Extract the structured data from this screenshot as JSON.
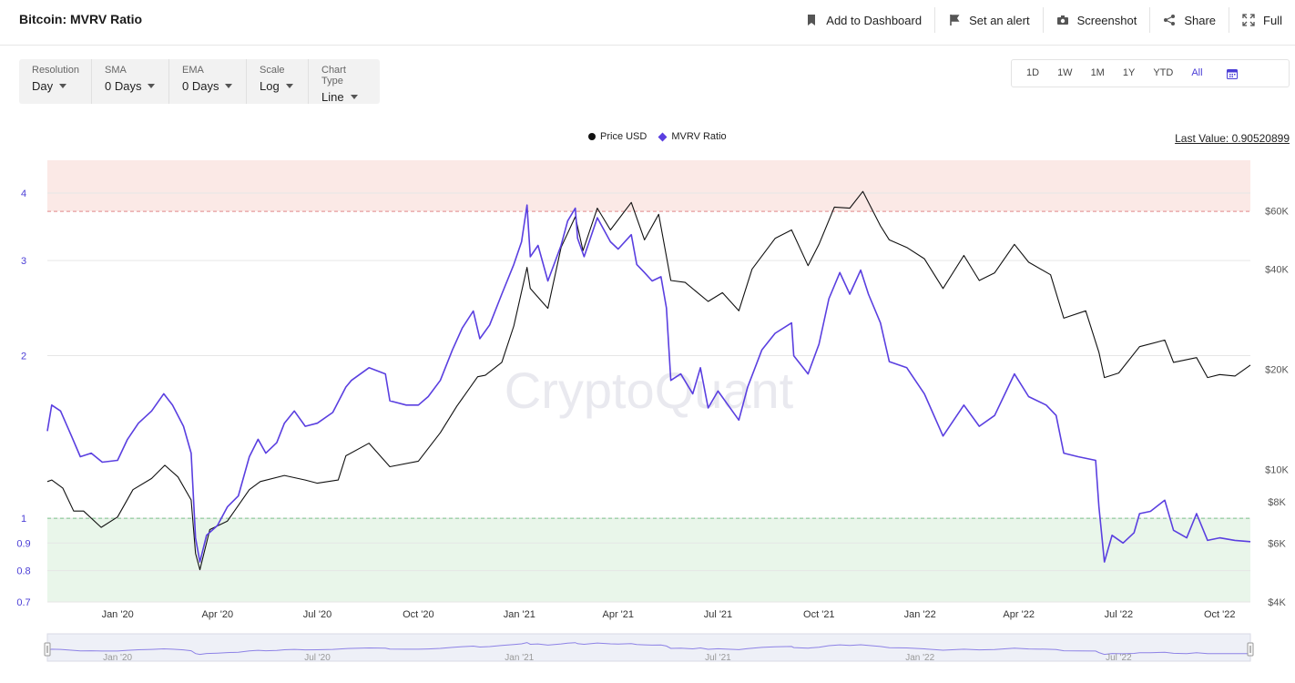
{
  "title": "Bitcoin: MVRV Ratio",
  "actions": [
    {
      "label": "Add to Dashboard",
      "icon": "bookmark-icon"
    },
    {
      "label": "Set an alert",
      "icon": "alert-flag-icon"
    },
    {
      "label": "Screenshot",
      "icon": "camera-icon"
    },
    {
      "label": "Share",
      "icon": "share-icon"
    },
    {
      "label": "Full",
      "icon": "expand-icon"
    }
  ],
  "controls": [
    {
      "label": "Resolution",
      "value": "Day"
    },
    {
      "label": "SMA",
      "value": "0 Days"
    },
    {
      "label": "EMA",
      "value": "0 Days"
    },
    {
      "label": "Scale",
      "value": "Log"
    },
    {
      "label": "Chart Type",
      "value": "Line"
    }
  ],
  "ranges": [
    "1D",
    "1W",
    "1M",
    "1Y",
    "YTD",
    "All"
  ],
  "active_range": "All",
  "legend": [
    {
      "name": "Price USD",
      "color": "#111111"
    },
    {
      "name": "MVRV Ratio",
      "color": "#5a3fe0"
    }
  ],
  "last_value": "Last Value: 0.90520899",
  "watermark": "CryptoQuant",
  "colors": {
    "mvrv": "#5a3fe0",
    "price": "#111111",
    "overvalued_zone": "#fbe9e6",
    "undervalued_zone": "#e9f6ea",
    "upper_threshold": "#e0868a",
    "lower_threshold": "#7cc28a"
  },
  "chart_data": {
    "type": "line",
    "scale": "log",
    "x_range": [
      "2019-10-29",
      "2022-10-29"
    ],
    "x_ticks": [
      {
        "label": "Jan '20",
        "date": "2020-01-01"
      },
      {
        "label": "Apr '20",
        "date": "2020-04-01"
      },
      {
        "label": "Jul '20",
        "date": "2020-07-01"
      },
      {
        "label": "Oct '20",
        "date": "2020-10-01"
      },
      {
        "label": "Jan '21",
        "date": "2021-01-01"
      },
      {
        "label": "Apr '21",
        "date": "2021-04-01"
      },
      {
        "label": "Jul '21",
        "date": "2021-07-01"
      },
      {
        "label": "Oct '21",
        "date": "2021-10-01"
      },
      {
        "label": "Jan '22",
        "date": "2022-01-01"
      },
      {
        "label": "Apr '22",
        "date": "2022-04-01"
      },
      {
        "label": "Jul '22",
        "date": "2022-07-01"
      },
      {
        "label": "Oct '22",
        "date": "2022-10-01"
      }
    ],
    "y_left": {
      "ticks": [
        0.7,
        0.8,
        0.9,
        1,
        2,
        3,
        4
      ],
      "range": [
        0.7,
        4.6
      ]
    },
    "y_right": {
      "ticks": [
        {
          "label": "$4K",
          "value": 4000
        },
        {
          "label": "$6K",
          "value": 6000
        },
        {
          "label": "$8K",
          "value": 8000
        },
        {
          "label": "$10K",
          "value": 10000
        },
        {
          "label": "$20K",
          "value": 20000
        },
        {
          "label": "$40K",
          "value": 40000
        },
        {
          "label": "$60K",
          "value": 60000
        }
      ],
      "range": [
        4000,
        85000
      ]
    },
    "zones": {
      "upper": 3.7,
      "lower": 1.0
    },
    "series": [
      {
        "name": "MVRV Ratio",
        "axis": "left",
        "points": [
          [
            "2019-10-29",
            1.45
          ],
          [
            "2019-11-02",
            1.62
          ],
          [
            "2019-11-10",
            1.58
          ],
          [
            "2019-11-20",
            1.42
          ],
          [
            "2019-11-28",
            1.3
          ],
          [
            "2019-12-08",
            1.32
          ],
          [
            "2019-12-18",
            1.27
          ],
          [
            "2020-01-01",
            1.28
          ],
          [
            "2020-01-10",
            1.4
          ],
          [
            "2020-01-20",
            1.5
          ],
          [
            "2020-02-01",
            1.58
          ],
          [
            "2020-02-12",
            1.7
          ],
          [
            "2020-02-20",
            1.62
          ],
          [
            "2020-03-01",
            1.48
          ],
          [
            "2020-03-08",
            1.32
          ],
          [
            "2020-03-12",
            0.92
          ],
          [
            "2020-03-16",
            0.83
          ],
          [
            "2020-03-22",
            0.93
          ],
          [
            "2020-04-01",
            0.97
          ],
          [
            "2020-04-10",
            1.05
          ],
          [
            "2020-04-20",
            1.1
          ],
          [
            "2020-04-30",
            1.3
          ],
          [
            "2020-05-08",
            1.4
          ],
          [
            "2020-05-15",
            1.32
          ],
          [
            "2020-05-25",
            1.38
          ],
          [
            "2020-06-01",
            1.5
          ],
          [
            "2020-06-10",
            1.58
          ],
          [
            "2020-06-20",
            1.48
          ],
          [
            "2020-07-01",
            1.5
          ],
          [
            "2020-07-15",
            1.57
          ],
          [
            "2020-07-27",
            1.75
          ],
          [
            "2020-08-01",
            1.8
          ],
          [
            "2020-08-17",
            1.9
          ],
          [
            "2020-09-01",
            1.85
          ],
          [
            "2020-09-05",
            1.65
          ],
          [
            "2020-09-20",
            1.62
          ],
          [
            "2020-10-01",
            1.62
          ],
          [
            "2020-10-10",
            1.68
          ],
          [
            "2020-10-21",
            1.8
          ],
          [
            "2020-11-01",
            2.05
          ],
          [
            "2020-11-10",
            2.25
          ],
          [
            "2020-11-20",
            2.42
          ],
          [
            "2020-11-26",
            2.15
          ],
          [
            "2020-12-05",
            2.28
          ],
          [
            "2020-12-16",
            2.6
          ],
          [
            "2020-12-27",
            2.95
          ],
          [
            "2021-01-03",
            3.25
          ],
          [
            "2021-01-08",
            3.8
          ],
          [
            "2021-01-11",
            3.05
          ],
          [
            "2021-01-18",
            3.2
          ],
          [
            "2021-01-27",
            2.75
          ],
          [
            "2021-02-08",
            3.2
          ],
          [
            "2021-02-14",
            3.55
          ],
          [
            "2021-02-21",
            3.75
          ],
          [
            "2021-02-23",
            3.3
          ],
          [
            "2021-03-01",
            3.05
          ],
          [
            "2021-03-13",
            3.6
          ],
          [
            "2021-03-25",
            3.25
          ],
          [
            "2021-04-01",
            3.15
          ],
          [
            "2021-04-13",
            3.35
          ],
          [
            "2021-04-18",
            2.95
          ],
          [
            "2021-04-25",
            2.85
          ],
          [
            "2021-05-02",
            2.75
          ],
          [
            "2021-05-10",
            2.8
          ],
          [
            "2021-05-15",
            2.45
          ],
          [
            "2021-05-19",
            1.8
          ],
          [
            "2021-05-28",
            1.85
          ],
          [
            "2021-06-08",
            1.7
          ],
          [
            "2021-06-15",
            1.9
          ],
          [
            "2021-06-22",
            1.6
          ],
          [
            "2021-07-01",
            1.72
          ],
          [
            "2021-07-20",
            1.52
          ],
          [
            "2021-07-28",
            1.75
          ],
          [
            "2021-08-10",
            2.05
          ],
          [
            "2021-08-22",
            2.2
          ],
          [
            "2021-09-06",
            2.3
          ],
          [
            "2021-09-08",
            2.0
          ],
          [
            "2021-09-21",
            1.85
          ],
          [
            "2021-10-01",
            2.1
          ],
          [
            "2021-10-10",
            2.55
          ],
          [
            "2021-10-20",
            2.85
          ],
          [
            "2021-10-29",
            2.6
          ],
          [
            "2021-11-08",
            2.88
          ],
          [
            "2021-11-15",
            2.6
          ],
          [
            "2021-11-26",
            2.3
          ],
          [
            "2021-12-04",
            1.95
          ],
          [
            "2021-12-20",
            1.9
          ],
          [
            "2022-01-05",
            1.7
          ],
          [
            "2022-01-22",
            1.42
          ],
          [
            "2022-02-10",
            1.62
          ],
          [
            "2022-02-24",
            1.48
          ],
          [
            "2022-03-10",
            1.55
          ],
          [
            "2022-03-28",
            1.85
          ],
          [
            "2022-04-10",
            1.68
          ],
          [
            "2022-04-26",
            1.62
          ],
          [
            "2022-05-05",
            1.55
          ],
          [
            "2022-05-12",
            1.32
          ],
          [
            "2022-05-25",
            1.3
          ],
          [
            "2022-06-10",
            1.28
          ],
          [
            "2022-06-13",
            1.05
          ],
          [
            "2022-06-18",
            0.83
          ],
          [
            "2022-06-25",
            0.93
          ],
          [
            "2022-07-05",
            0.9
          ],
          [
            "2022-07-15",
            0.94
          ],
          [
            "2022-07-20",
            1.02
          ],
          [
            "2022-07-30",
            1.03
          ],
          [
            "2022-08-12",
            1.08
          ],
          [
            "2022-08-20",
            0.95
          ],
          [
            "2022-09-01",
            0.92
          ],
          [
            "2022-09-10",
            1.02
          ],
          [
            "2022-09-20",
            0.91
          ],
          [
            "2022-10-01",
            0.92
          ],
          [
            "2022-10-15",
            0.91
          ],
          [
            "2022-10-29",
            0.905
          ]
        ]
      },
      {
        "name": "Price USD",
        "axis": "right",
        "points": [
          [
            "2019-10-29",
            9200
          ],
          [
            "2019-11-02",
            9300
          ],
          [
            "2019-11-12",
            8800
          ],
          [
            "2019-11-22",
            7500
          ],
          [
            "2019-12-01",
            7500
          ],
          [
            "2019-12-17",
            6700
          ],
          [
            "2020-01-01",
            7200
          ],
          [
            "2020-01-15",
            8700
          ],
          [
            "2020-02-01",
            9400
          ],
          [
            "2020-02-13",
            10300
          ],
          [
            "2020-02-25",
            9500
          ],
          [
            "2020-03-08",
            8100
          ],
          [
            "2020-03-12",
            5600
          ],
          [
            "2020-03-16",
            5000
          ],
          [
            "2020-03-25",
            6600
          ],
          [
            "2020-04-10",
            7000
          ],
          [
            "2020-04-30",
            8700
          ],
          [
            "2020-05-10",
            9200
          ],
          [
            "2020-06-01",
            9600
          ],
          [
            "2020-06-20",
            9300
          ],
          [
            "2020-07-01",
            9100
          ],
          [
            "2020-07-20",
            9300
          ],
          [
            "2020-07-27",
            11000
          ],
          [
            "2020-08-17",
            12000
          ],
          [
            "2020-09-05",
            10200
          ],
          [
            "2020-10-01",
            10600
          ],
          [
            "2020-10-21",
            12900
          ],
          [
            "2020-11-05",
            15500
          ],
          [
            "2020-11-24",
            19000
          ],
          [
            "2020-12-01",
            19200
          ],
          [
            "2020-12-16",
            21000
          ],
          [
            "2020-12-27",
            27000
          ],
          [
            "2021-01-08",
            40500
          ],
          [
            "2021-01-11",
            35000
          ],
          [
            "2021-01-27",
            30500
          ],
          [
            "2021-02-08",
            46500
          ],
          [
            "2021-02-21",
            57500
          ],
          [
            "2021-02-28",
            45500
          ],
          [
            "2021-03-13",
            61000
          ],
          [
            "2021-03-25",
            52500
          ],
          [
            "2021-04-13",
            63500
          ],
          [
            "2021-04-25",
            49000
          ],
          [
            "2021-05-08",
            58500
          ],
          [
            "2021-05-19",
            37000
          ],
          [
            "2021-06-01",
            36500
          ],
          [
            "2021-06-22",
            32000
          ],
          [
            "2021-07-05",
            34000
          ],
          [
            "2021-07-20",
            30000
          ],
          [
            "2021-08-01",
            40000
          ],
          [
            "2021-08-22",
            49500
          ],
          [
            "2021-09-06",
            52500
          ],
          [
            "2021-09-21",
            41000
          ],
          [
            "2021-10-01",
            47500
          ],
          [
            "2021-10-15",
            61500
          ],
          [
            "2021-10-29",
            61000
          ],
          [
            "2021-11-10",
            68500
          ],
          [
            "2021-11-26",
            54000
          ],
          [
            "2021-12-04",
            49000
          ],
          [
            "2021-12-20",
            46500
          ],
          [
            "2022-01-05",
            43000
          ],
          [
            "2022-01-22",
            35000
          ],
          [
            "2022-02-10",
            44000
          ],
          [
            "2022-02-24",
            37000
          ],
          [
            "2022-03-10",
            39000
          ],
          [
            "2022-03-28",
            47500
          ],
          [
            "2022-04-10",
            42000
          ],
          [
            "2022-04-30",
            38500
          ],
          [
            "2022-05-12",
            28500
          ],
          [
            "2022-06-01",
            30000
          ],
          [
            "2022-06-13",
            22500
          ],
          [
            "2022-06-18",
            18900
          ],
          [
            "2022-07-01",
            19500
          ],
          [
            "2022-07-20",
            23400
          ],
          [
            "2022-08-12",
            24500
          ],
          [
            "2022-08-20",
            21000
          ],
          [
            "2022-09-10",
            21700
          ],
          [
            "2022-09-20",
            18900
          ],
          [
            "2022-10-01",
            19300
          ],
          [
            "2022-10-15",
            19100
          ],
          [
            "2022-10-29",
            20600
          ]
        ]
      }
    ]
  },
  "navigator": {
    "labels": [
      "Jan '20",
      "Jul '20",
      "Jan '21",
      "Jul '21",
      "Jan '22",
      "Jul '22"
    ]
  }
}
